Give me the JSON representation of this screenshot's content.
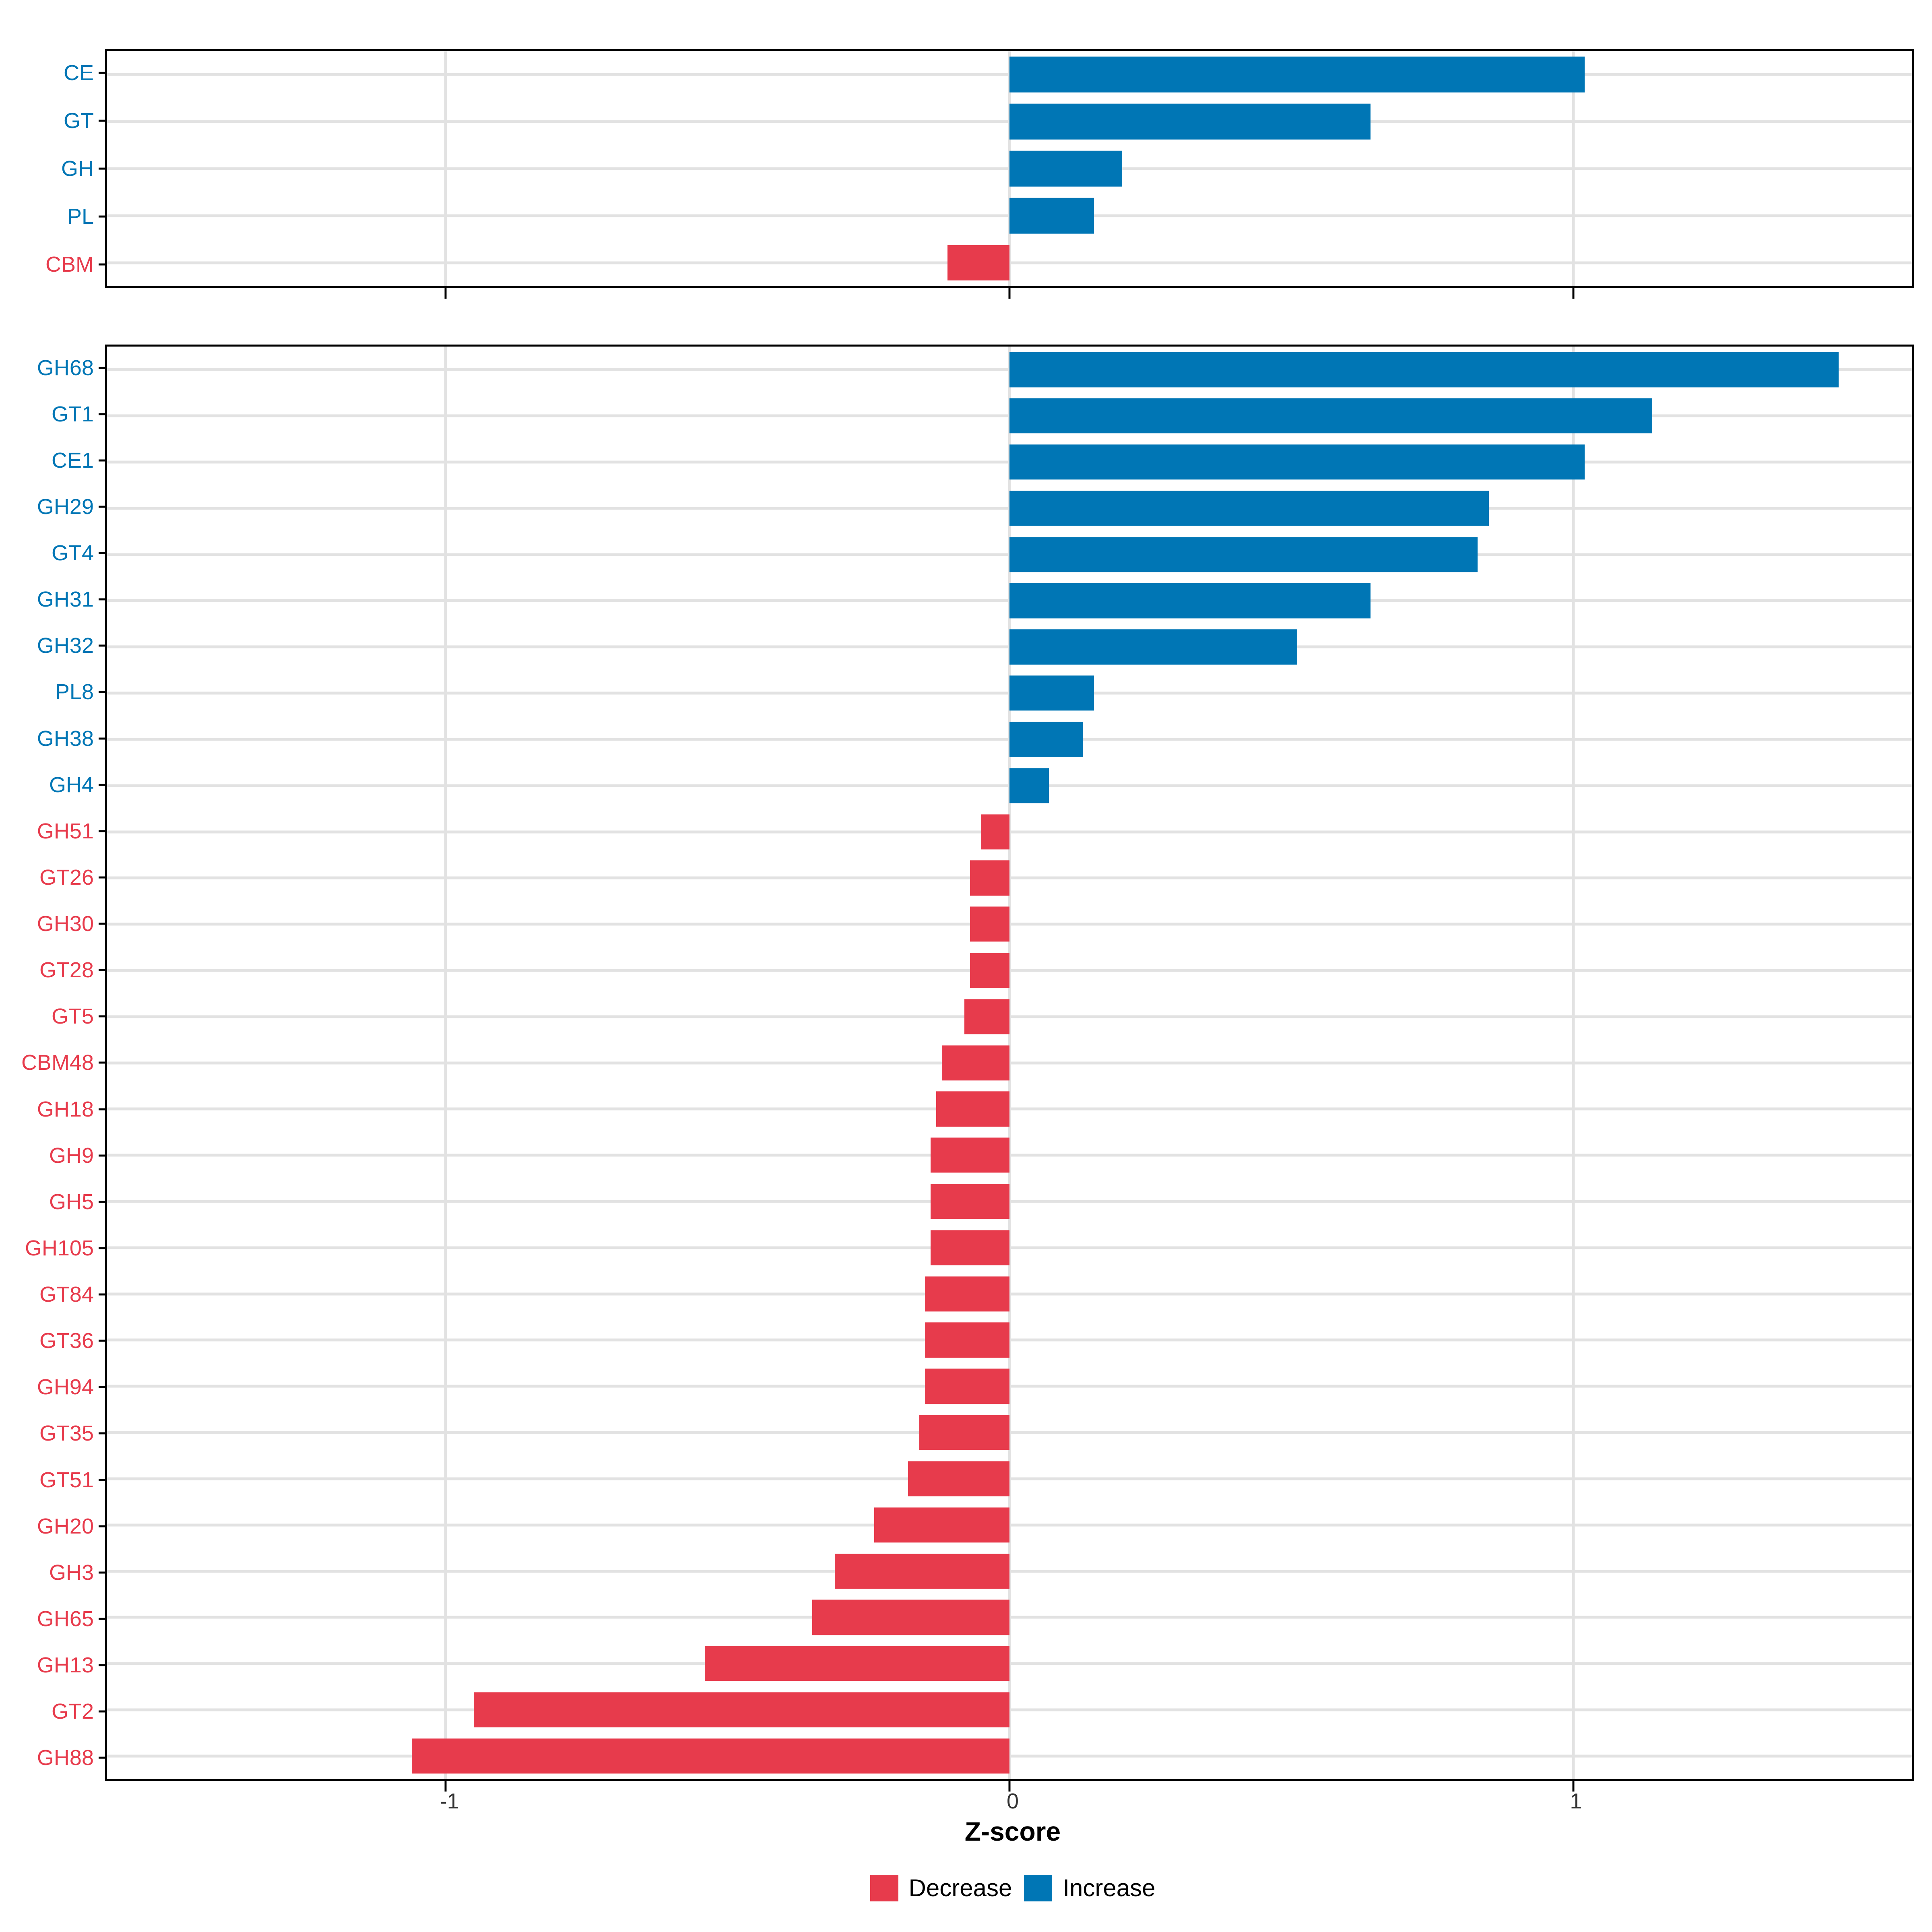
{
  "colors": {
    "increase": "#0076B5",
    "decrease": "#E73B4C",
    "grid": "#E2E2E2",
    "axis_text": "#333333",
    "axis_line": "#000000"
  },
  "axis": {
    "title": "Z-score",
    "xlim": [
      -1.6,
      1.6
    ],
    "xticks": [
      -1,
      0,
      1
    ],
    "tick_labels": [
      "-1",
      "0",
      "1"
    ]
  },
  "legend": {
    "position": "bottom",
    "items": [
      {
        "label": "Decrease",
        "type": "decrease"
      },
      {
        "label": "Increase",
        "type": "increase"
      }
    ]
  },
  "chart_data": [
    {
      "type": "bar",
      "orientation": "horizontal",
      "panel": "cazyme-classes",
      "title": "",
      "xlabel": "Z-score",
      "xlim": [
        -1.6,
        1.6
      ],
      "xticks": [
        -1,
        0,
        1
      ],
      "grid": true,
      "categories": [
        "CE",
        "GT",
        "GH",
        "PL",
        "CBM"
      ],
      "values": [
        1.02,
        0.64,
        0.2,
        0.15,
        -0.11
      ],
      "directions": [
        "increase",
        "increase",
        "increase",
        "increase",
        "decrease"
      ]
    },
    {
      "type": "bar",
      "orientation": "horizontal",
      "panel": "cazyme-families",
      "title": "",
      "xlabel": "Z-score",
      "xlim": [
        -1.6,
        1.6
      ],
      "xticks": [
        -1,
        0,
        1
      ],
      "grid": true,
      "categories": [
        "GH68",
        "GT1",
        "CE1",
        "GH29",
        "GT4",
        "GH31",
        "GH32",
        "PL8",
        "GH38",
        "GH4",
        "GH51",
        "GT26",
        "GH30",
        "GT28",
        "GT5",
        "CBM48",
        "GH18",
        "GH9",
        "GH5",
        "GH105",
        "GT84",
        "GT36",
        "GH94",
        "GT35",
        "GT51",
        "GH20",
        "GH3",
        "GH65",
        "GH13",
        "GT2",
        "GH88"
      ],
      "values": [
        1.47,
        1.14,
        1.02,
        0.85,
        0.83,
        0.64,
        0.51,
        0.15,
        0.13,
        0.07,
        -0.05,
        -0.07,
        -0.07,
        -0.07,
        -0.08,
        -0.12,
        -0.13,
        -0.14,
        -0.14,
        -0.14,
        -0.15,
        -0.15,
        -0.15,
        -0.16,
        -0.18,
        -0.24,
        -0.31,
        -0.35,
        -0.54,
        -0.95,
        -1.06
      ],
      "directions": [
        "increase",
        "increase",
        "increase",
        "increase",
        "increase",
        "increase",
        "increase",
        "increase",
        "increase",
        "increase",
        "decrease",
        "decrease",
        "decrease",
        "decrease",
        "decrease",
        "decrease",
        "decrease",
        "decrease",
        "decrease",
        "decrease",
        "decrease",
        "decrease",
        "decrease",
        "decrease",
        "decrease",
        "decrease",
        "decrease",
        "decrease",
        "decrease",
        "decrease",
        "decrease"
      ]
    }
  ]
}
